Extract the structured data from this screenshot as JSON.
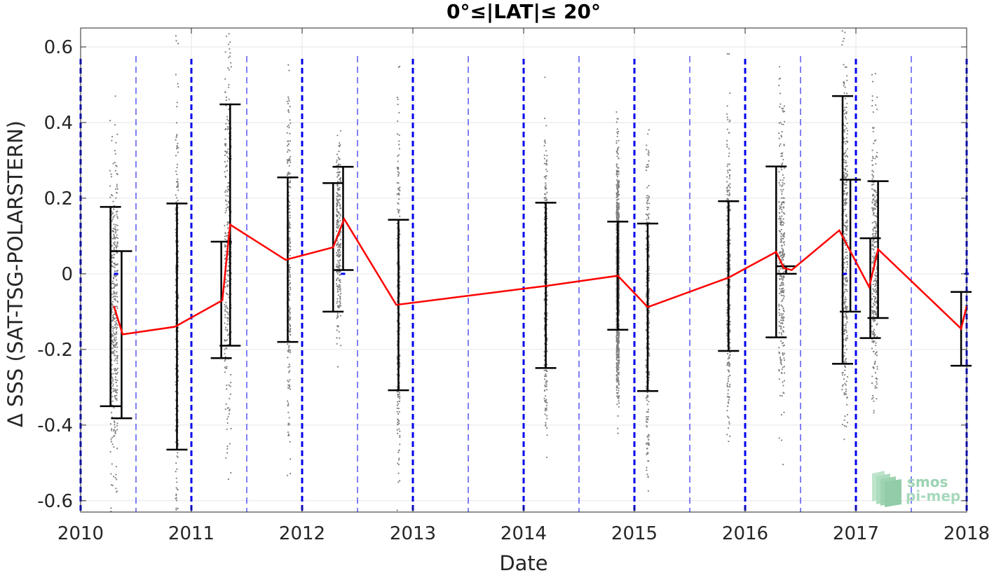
{
  "chart_data": {
    "type": "scatter",
    "title": "0°≤|LAT|≤ 20°",
    "xlabel": "Date",
    "ylabel": "Δ SSS (SAT-TSG-POLARSTERN)",
    "xlim": [
      2010,
      2018
    ],
    "ylim": [
      -0.63,
      0.65
    ],
    "xticks": [
      2010,
      2011,
      2012,
      2013,
      2014,
      2015,
      2016,
      2017,
      2018
    ],
    "xtick_labels": [
      "2010",
      "2011",
      "2012",
      "2013",
      "2014",
      "2015",
      "2016",
      "2017",
      "2018"
    ],
    "yticks": [
      -0.6,
      -0.4,
      -0.2,
      0,
      0.2,
      0.4,
      0.6
    ],
    "ytick_labels": [
      "-0.6",
      "-0.4",
      "-0.2",
      "0",
      "0.2",
      "0.4",
      "0.6"
    ],
    "grid": true,
    "year_lines": [
      2010,
      2011,
      2012,
      2013,
      2014,
      2015,
      2016,
      2017,
      2018
    ],
    "half_year_lines": [
      2010.5,
      2011.5,
      2012.5,
      2013.5,
      2014.5,
      2015.5,
      2016.5,
      2017.5
    ],
    "colors": {
      "points": "#808080",
      "mean_line": "#ff0000",
      "error_bars": "#000000",
      "year_lines": "#0000ee",
      "grid": "#e6e6e6"
    },
    "mean_line": {
      "name": "",
      "x": [
        2010.3,
        2010.38,
        2010.85,
        2011.28,
        2011.35,
        2011.85,
        2012.28,
        2012.38,
        2012.85,
        2014.2,
        2014.85,
        2015.12,
        2015.85,
        2016.28,
        2016.35,
        2016.42,
        2016.85,
        2017.12,
        2017.2,
        2017.95,
        2018.0
      ],
      "y": [
        -0.085,
        -0.16,
        -0.14,
        -0.07,
        0.13,
        0.037,
        0.07,
        0.145,
        -0.082,
        -0.032,
        -0.005,
        -0.088,
        -0.01,
        0.058,
        0.015,
        0.01,
        0.115,
        -0.035,
        0.065,
        -0.145,
        -0.085
      ]
    },
    "error_bars": [
      {
        "x": 2010.27,
        "low": -0.35,
        "high": 0.177
      },
      {
        "x": 2010.37,
        "low": -0.382,
        "high": 0.06
      },
      {
        "x": 2010.87,
        "low": -0.465,
        "high": 0.186
      },
      {
        "x": 2011.27,
        "low": -0.223,
        "high": 0.085
      },
      {
        "x": 2011.35,
        "low": -0.19,
        "high": 0.448
      },
      {
        "x": 2011.87,
        "low": -0.18,
        "high": 0.255
      },
      {
        "x": 2012.28,
        "low": -0.1,
        "high": 0.24
      },
      {
        "x": 2012.37,
        "low": 0.01,
        "high": 0.283
      },
      {
        "x": 2012.87,
        "low": -0.308,
        "high": 0.143
      },
      {
        "x": 2014.2,
        "low": -0.249,
        "high": 0.188
      },
      {
        "x": 2014.85,
        "low": -0.148,
        "high": 0.138
      },
      {
        "x": 2015.12,
        "low": -0.31,
        "high": 0.133
      },
      {
        "x": 2015.85,
        "low": -0.204,
        "high": 0.192
      },
      {
        "x": 2016.28,
        "low": -0.168,
        "high": 0.284
      },
      {
        "x": 2016.37,
        "low": 0.0,
        "high": 0.02
      },
      {
        "x": 2016.88,
        "low": -0.238,
        "high": 0.47
      },
      {
        "x": 2016.95,
        "low": -0.1,
        "high": 0.249
      },
      {
        "x": 2017.13,
        "low": -0.17,
        "high": 0.094
      },
      {
        "x": 2017.2,
        "low": -0.117,
        "high": 0.245
      },
      {
        "x": 2017.95,
        "low": -0.243,
        "high": -0.048
      }
    ],
    "point_clusters": [
      {
        "x": 2010.3,
        "spread": 0.035,
        "mean": -0.09,
        "sd": 0.21,
        "ymin": -0.63,
        "ymax": 0.6,
        "n": 420
      },
      {
        "x": 2010.87,
        "spread": 0.012,
        "mean": -0.14,
        "sd": 0.3,
        "ymin": -0.63,
        "ymax": 0.65,
        "n": 240
      },
      {
        "x": 2011.33,
        "spread": 0.03,
        "mean": 0.1,
        "sd": 0.25,
        "ymin": -0.6,
        "ymax": 0.65,
        "n": 300
      },
      {
        "x": 2011.88,
        "spread": 0.015,
        "mean": 0.04,
        "sd": 0.22,
        "ymin": -0.6,
        "ymax": 0.65,
        "n": 260
      },
      {
        "x": 2012.33,
        "spread": 0.02,
        "mean": 0.1,
        "sd": 0.12,
        "ymin": -0.3,
        "ymax": 0.5,
        "n": 260
      },
      {
        "x": 2012.87,
        "spread": 0.012,
        "mean": -0.08,
        "sd": 0.23,
        "ymin": -0.63,
        "ymax": 0.55,
        "n": 260
      },
      {
        "x": 2014.2,
        "spread": 0.013,
        "mean": -0.03,
        "sd": 0.2,
        "ymin": -0.6,
        "ymax": 0.55,
        "n": 260
      },
      {
        "x": 2014.85,
        "spread": 0.012,
        "mean": -0.005,
        "sd": 0.15,
        "ymin": -0.46,
        "ymax": 0.48,
        "n": 900
      },
      {
        "x": 2015.12,
        "spread": 0.015,
        "mean": -0.09,
        "sd": 0.22,
        "ymin": -0.63,
        "ymax": 0.45,
        "n": 280
      },
      {
        "x": 2015.85,
        "spread": 0.015,
        "mean": -0.01,
        "sd": 0.2,
        "ymin": -0.45,
        "ymax": 0.65,
        "n": 300
      },
      {
        "x": 2016.33,
        "spread": 0.025,
        "mean": 0.04,
        "sd": 0.2,
        "ymin": -0.63,
        "ymax": 0.55,
        "n": 300
      },
      {
        "x": 2016.9,
        "spread": 0.025,
        "mean": 0.11,
        "sd": 0.25,
        "ymin": -0.45,
        "ymax": 0.65,
        "n": 360
      },
      {
        "x": 2017.17,
        "spread": 0.025,
        "mean": 0.02,
        "sd": 0.2,
        "ymin": -0.38,
        "ymax": 0.65,
        "n": 300
      }
    ],
    "mean_markers": [
      {
        "x": 2010.32,
        "y": 0.0
      },
      {
        "x": 2012.37,
        "y": 0.0
      },
      {
        "x": 2016.9,
        "y": 0.0
      },
      {
        "x": 2018.0,
        "y": 0.0
      }
    ],
    "watermark": "smos pi-mep"
  }
}
